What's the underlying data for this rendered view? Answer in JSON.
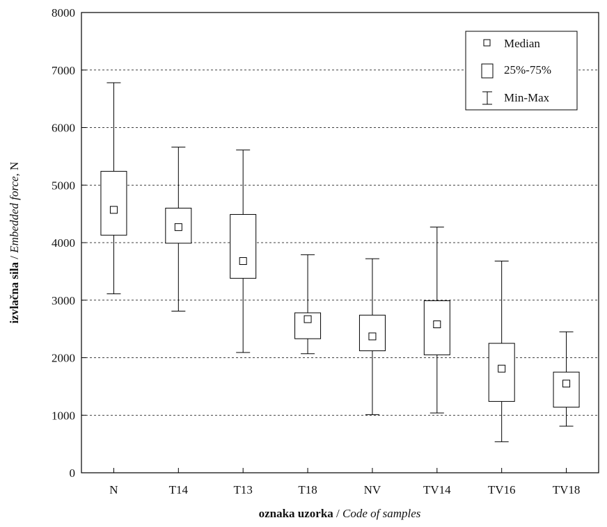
{
  "chart_data": {
    "type": "box",
    "categories": [
      "N",
      "T14",
      "T13",
      "T18",
      "NV",
      "TV14",
      "TV16",
      "TV18"
    ],
    "series": [
      {
        "min": [
          3110,
          2810,
          2090,
          2070,
          1010,
          1040,
          540,
          810
        ],
        "q1": [
          4130,
          3990,
          3380,
          2330,
          2120,
          2050,
          1240,
          1140
        ],
        "median": [
          4570,
          4270,
          3680,
          2670,
          2370,
          2580,
          1810,
          1550
        ],
        "q3": [
          5240,
          4600,
          4490,
          2780,
          2740,
          2990,
          2250,
          1750
        ],
        "max": [
          6780,
          5660,
          5610,
          3790,
          3720,
          4270,
          3680,
          2450
        ]
      }
    ],
    "ylim": [
      0,
      8000
    ],
    "yticks": [
      "0",
      "1000",
      "2000",
      "3000",
      "4000",
      "5000",
      "6000",
      "7000",
      "8000"
    ],
    "grid": "horizontal dotted",
    "legend_position": "top-right",
    "legend": [
      "Median",
      "25%-75%",
      "Min-Max"
    ],
    "xlabel": {
      "bold": "oznaka uzorka",
      "sep": " / ",
      "italic": "Code of samples"
    },
    "ylabel": {
      "bold": "izvlačna sila",
      "sep": " / ",
      "italic": "Embedded force",
      "unit": ", N"
    }
  }
}
